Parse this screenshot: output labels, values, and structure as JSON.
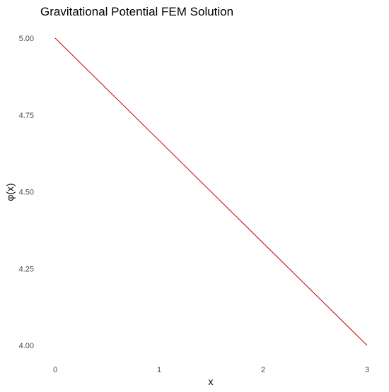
{
  "chart_data": {
    "type": "line",
    "title": "Gravitational Potential FEM Solution",
    "xlabel": "x",
    "ylabel": "φ(x)",
    "xlim": [
      0,
      3
    ],
    "ylim": [
      4.0,
      5.0
    ],
    "x_ticks": [
      "0",
      "1",
      "2",
      "3"
    ],
    "y_ticks": [
      "4.00",
      "4.25",
      "4.50",
      "4.75",
      "5.00"
    ],
    "grid": false,
    "legend": "none",
    "series": [
      {
        "color": "#cc0000",
        "x": [
          0,
          3
        ],
        "y": [
          5.0,
          4.0
        ]
      }
    ]
  }
}
